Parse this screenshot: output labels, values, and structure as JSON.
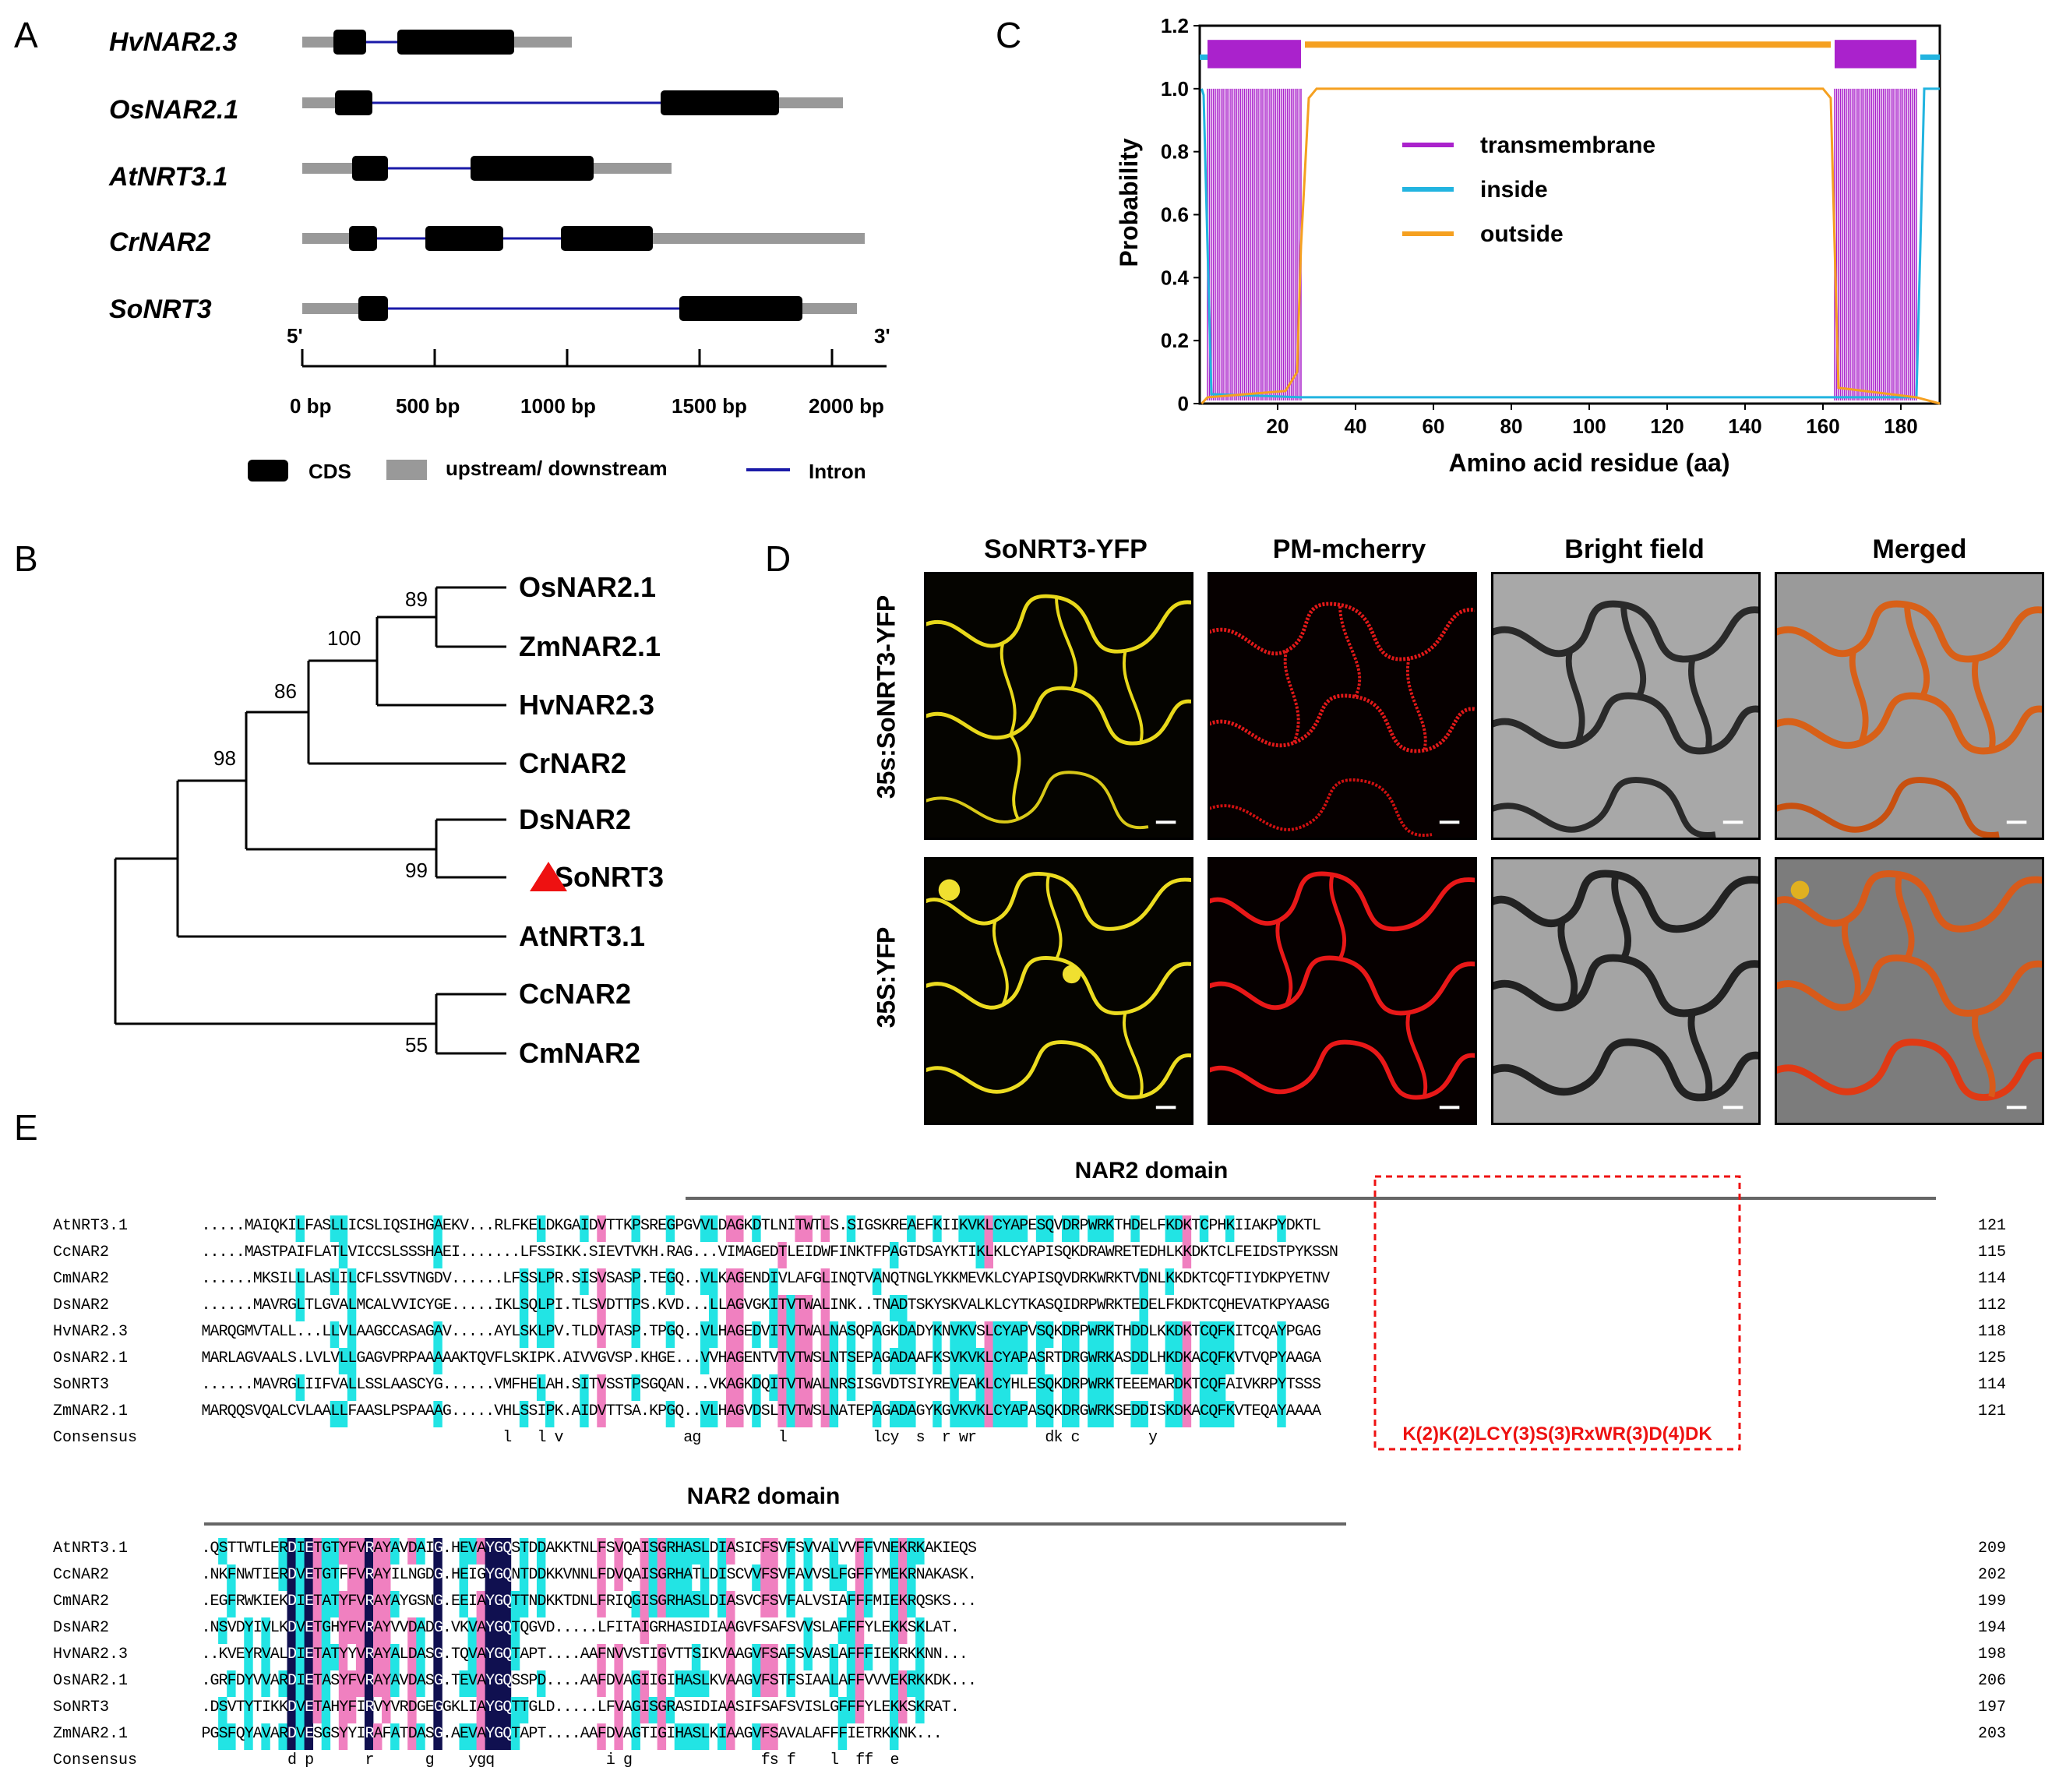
{
  "panels": {
    "A": "A",
    "B": "B",
    "C": "C",
    "D": "D",
    "E": "E"
  },
  "panelA": {
    "genes": [
      "HvNAR2.3",
      "OsNAR2.1",
      "AtNRT3.1",
      "CrNAR2",
      "SoNRT3"
    ],
    "end5": "5'",
    "end3": "3'",
    "ticks": [
      "0 bp",
      "500 bp",
      "1000 bp",
      "1500 bp",
      "2000 bp"
    ],
    "legend": {
      "cds": "CDS",
      "updown": "upstream/ downstream",
      "intron": "Intron"
    },
    "colors": {
      "cds": "#000000",
      "updown": "#999999",
      "intron": "#1a1aa8"
    }
  },
  "panelB": {
    "taxa": [
      "OsNAR2.1",
      "ZmNAR2.1",
      "HvNAR2.3",
      "CrNAR2",
      "DsNAR2",
      "SoNRT3",
      "AtNRT3.1",
      "CcNAR2",
      "CmNAR2"
    ],
    "bootstraps": [
      "89",
      "100",
      "86",
      "98",
      "99",
      "55"
    ],
    "highlight_color": "#ee1111"
  },
  "chart_data": {
    "type": "line",
    "xlabel": "Amino acid residue (aa)",
    "ylabel": "Probability",
    "xlim": [
      0,
      190
    ],
    "ylim": [
      0,
      1.2
    ],
    "xticks": [
      "20",
      "40",
      "60",
      "80",
      "100",
      "120",
      "140",
      "160",
      "180"
    ],
    "yticks": [
      "0",
      "0.2",
      "0.4",
      "0.6",
      "0.8",
      "1.0",
      "1.2"
    ],
    "series": [
      {
        "name": "transmembrane",
        "color": "#aa22cc",
        "segments": [
          [
            2,
            26
          ],
          [
            163,
            184
          ]
        ]
      },
      {
        "name": "inside",
        "color": "#22b4e0",
        "segments": [
          [
            0,
            2
          ],
          [
            185,
            190
          ]
        ]
      },
      {
        "name": "outside",
        "color": "#f5a020",
        "segments": [
          [
            27,
            162
          ]
        ]
      }
    ]
  },
  "panelD": {
    "columns": [
      "SoNRT3-YFP",
      "PM-mcherry",
      "Bright field",
      "Merged"
    ],
    "rows": [
      "35s:SoNRT3-YFP",
      "35S:YFP"
    ]
  },
  "panelE": {
    "domain_label": "NAR2 domain",
    "motif": "K(2)K(2)LCY(3)S(3)RxWR(3)D(4)DK",
    "block1": {
      "rows": [
        {
          "name": "AtNRT3.1",
          "seq": ".....MAIQKILFASLLICSLIQSIHGAEKV...RLFKELDKGAIDVTTKPSREGPGVVLDAGKDTLNITWTLS.SIGSKREAEFKIIKVKLCYAPESQVDRPWRKTHDELFKDKTCPHKIIAKPYDKTL",
          "num": "121"
        },
        {
          "name": "CcNAR2",
          "seq": ".....MASTPAIFLATLVICCSLSSSHAEI.......LFSSIKK.SIEVTVKH.RAG...VIMAGEDTLEIDWFINKTFPAGTDSAYKTIKLKLCYAPISQKDRAWRETEDHLKKDKTCLFEIDSTPYKSSN",
          "num": "115"
        },
        {
          "name": "CmNAR2",
          "seq": "......MKSILLLASLILCFLSSVTNGDV......LFSSLPR.SISVSASP.TEGQ..VLKAGENDIVLAFGLINQTVANQTNGLYKKMEVKLCYAPISQVDRKWRKTVDNLKKDKTCQFTIYDKPYETNV",
          "num": "114"
        },
        {
          "name": "DsNAR2",
          "seq": "......MAVRGLTLGVALMCALVVICYGE.....IKLSQLPI.TLSVDTTPS.KVD...LLAGVGKITVTWALINK..TNADTSKYSKVALKLCYTKASQIDRPWRKTEDELFKDKTCQHEVATKPYAASG",
          "num": "112"
        },
        {
          "name": "HvNAR2.3",
          "seq": "MARQGMVTALL...LLVLAAGCCASAGAV.....AYLSKLPV.TLDVTASP.TPGQ..VLHAGEDVITVTWALNASQPAGKDADYKNVKVSLCYAPVSQKDRPWRKTHDDLKKDKTCQFKITCQAYPGAG",
          "num": "118"
        },
        {
          "name": "OsNAR2.1",
          "seq": "MARLAGVAALS.LVLVLLGAGVPRPAAAAAKTQVFLSKIPK.AIVVGVSP.KHGE...VVHAGENTVTVTWSLNTSEPAGADAAFKSVKVKLCYAPASRTDRGWRKASDDLHKDKACQFKVTVQPYAAGA",
          "num": "125"
        },
        {
          "name": "SoNRT3",
          "seq": "......MAVRGLIIFVALLSSLAASCYG......VMFHELAH.SITVSSTPSGQAN...VKAGKDQITVTWALNRSISGVDTSIYREVEAKLCYHLESQKDRPWRKTEEEMARDKTCQFAIVKRPYTSSS",
          "num": "114"
        },
        {
          "name": "ZmNAR2.1",
          "seq": "MARQQSVQALCVLAALLFAASLPSPAAAG.....VHLSSIPK.AIDVTTSA.KPGQ..VLHAGVDSLTVTWSLNATEPAGADAGYKGVKVKLCYAPASQKDRGWRKSEDDISKDKACQFKVTEQAYAAAA",
          "num": "121"
        }
      ],
      "consensus": {
        "name": "Consensus",
        "seq": "                                   l   l v              ag         l          lcy  s  r wr        dk c        y      "
      }
    },
    "block2": {
      "rows": [
        {
          "name": "AtNRT3.1",
          "seq": ".QSTTWTLERDIETGTYFVRAYAVDAIG.HEVAYGQSTDDAKKTNLFSVQAISGRHASLDIASICFSVFSVVALVVFFVNEKRKAKIEQS",
          "num": "209"
        },
        {
          "name": "CcNAR2",
          "seq": ".NKFNWTIERDVETGTFFVRAYILNGDG.HEIGYGQNTDDKKVNNLFDVQAISGRHATLDISCVVFSVFAVVSLFGFFYMEKRNAKASK.",
          "num": "202"
        },
        {
          "name": "CmNAR2",
          "seq": ".EGFRWKIEKDIETATYFVRAYAYGSNG.EEIAYGQTTNDKKTDNLFRIQGISGRHASLDIASVCFSVFALVSIAFFFMIEKRQSKS...",
          "num": "199"
        },
        {
          "name": "DsNAR2",
          "seq": ".NSVDYIVLKDVETGHYFVRAYVVDADG.VKVAYGQTQGVD.....LFITAIGRHASIDIAAGVFSAFSVVSLAFFFYLEKKSKLAT.",
          "num": "194"
        },
        {
          "name": "HvNAR2.3",
          "seq": "..KVEYRVALDIETATYYVRAYALDASG.TQVAYGQTAPT....AAFNVVSTIGVTTSIKVAAGVFSAFSVASLAFFFIEKRKKNN...",
          "num": "198"
        },
        {
          "name": "OsNAR2.1",
          "seq": ".GRFDYVVARDIETASYFVRAYAVDASG.TEVAYGQSSPD....AAFDVAGIIGIHASLKVAAGVFSTFSIAALAFFVVVEKRKKDK...",
          "num": "206"
        },
        {
          "name": "SoNRT3",
          "seq": ".DSVTYTIKKDVETAHYFIRVYVRDGEGGKLIAYGQTTGLD.....LFVAGISGRASIDIAASIFSAFSVISLGFFFYLEKKSKRAT.",
          "num": "197"
        },
        {
          "name": "ZmNAR2.1",
          "seq": "PGSFQYAVARDVESGSYYIRAFATDASG.AEVAYGQTAPT....AAFDVAGTIGIHASLKIAAGVFSAVALAFFFIETRKKNK...",
          "num": "203"
        }
      ],
      "consensus": {
        "name": "Consensus",
        "seq": "          d p      r      g    ygq             i g               fs f    l  ff  e        "
      }
    }
  }
}
